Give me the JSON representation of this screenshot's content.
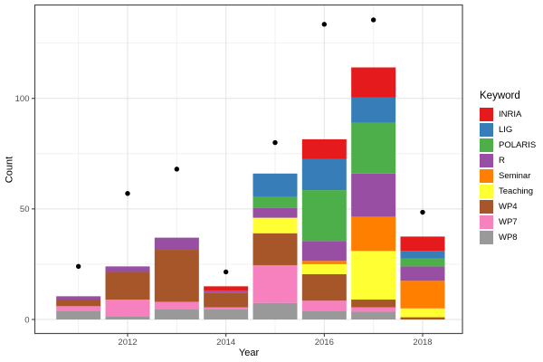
{
  "chart_data": {
    "type": "bar",
    "subtype": "stacked-bars-with-point-overlay",
    "title": "",
    "xlabel": "Year",
    "ylabel": "Count",
    "legend_title": "Keyword",
    "x": [
      2011,
      2012,
      2013,
      2014,
      2015,
      2016,
      2017,
      2018
    ],
    "x_ticks": [
      2012,
      2014,
      2016,
      2018
    ],
    "x_minor_years": [
      2011,
      2013,
      2015,
      2017
    ],
    "y_ticks": [
      0,
      50,
      100
    ],
    "y_minor_ticks": [
      25,
      75,
      125
    ],
    "ylim": [
      -6.3,
      142.5
    ],
    "xlim": [
      2010.1,
      2018.85
    ],
    "bar_width_years": 0.9,
    "grid": true,
    "legend_position": "right",
    "legend_order": [
      "INRIA",
      "LIG",
      "POLARIS",
      "R",
      "Seminar",
      "Teaching",
      "WP4",
      "WP7",
      "WP8"
    ],
    "stack_order_bottom_to_top": [
      "WP8",
      "WP7",
      "WP4",
      "Teaching",
      "Seminar",
      "R",
      "POLARIS",
      "LIG",
      "INRIA"
    ],
    "colors": {
      "INRIA": "#E41A1C",
      "LIG": "#377EB8",
      "POLARIS": "#4DAF4A",
      "R": "#984EA3",
      "Seminar": "#FF7F00",
      "Teaching": "#FFFF33",
      "WP4": "#A65628",
      "WP7": "#F781BF",
      "WP8": "#999999",
      "points": "#000000",
      "grid_major": "#E3E3E3",
      "grid_minor": "#F1F1F1",
      "panel_border": "#4d4d4d",
      "tick_label": "#4d4d4d",
      "background": "#FFFFFF"
    },
    "series": [
      {
        "name": "INRIA",
        "values": [
          0,
          0,
          0,
          2,
          0,
          9,
          13.5,
          6.5
        ]
      },
      {
        "name": "LIG",
        "values": [
          0,
          0,
          0,
          0,
          10.5,
          14,
          11.5,
          3.5
        ]
      },
      {
        "name": "POLARIS",
        "values": [
          0,
          0,
          0,
          0,
          5,
          23,
          23,
          3.5
        ]
      },
      {
        "name": "R",
        "values": [
          1.5,
          2.5,
          5.5,
          1,
          4.5,
          9,
          19.5,
          6.5
        ]
      },
      {
        "name": "Seminar",
        "values": [
          0,
          0,
          0,
          0,
          0,
          1.5,
          15.5,
          12.5
        ]
      },
      {
        "name": "Teaching",
        "values": [
          0,
          0,
          0,
          0,
          7,
          4.5,
          22,
          4
        ]
      },
      {
        "name": "WP4",
        "values": [
          3,
          12.5,
          23.5,
          6.5,
          14.5,
          12,
          3.5,
          1
        ]
      },
      {
        "name": "WP7",
        "values": [
          2,
          7.5,
          3.5,
          1,
          17,
          4.5,
          2,
          0
        ]
      },
      {
        "name": "WP8",
        "values": [
          4,
          1.5,
          4.5,
          4.5,
          7.5,
          4,
          3.5,
          0
        ]
      }
    ],
    "bar_totals": [
      10.5,
      24,
      37,
      15,
      66,
      81.5,
      114,
      37.5
    ],
    "points": {
      "name": "yearly-dots",
      "values": [
        24,
        57,
        68,
        21.5,
        80,
        133.5,
        135.5,
        48.5
      ]
    }
  }
}
